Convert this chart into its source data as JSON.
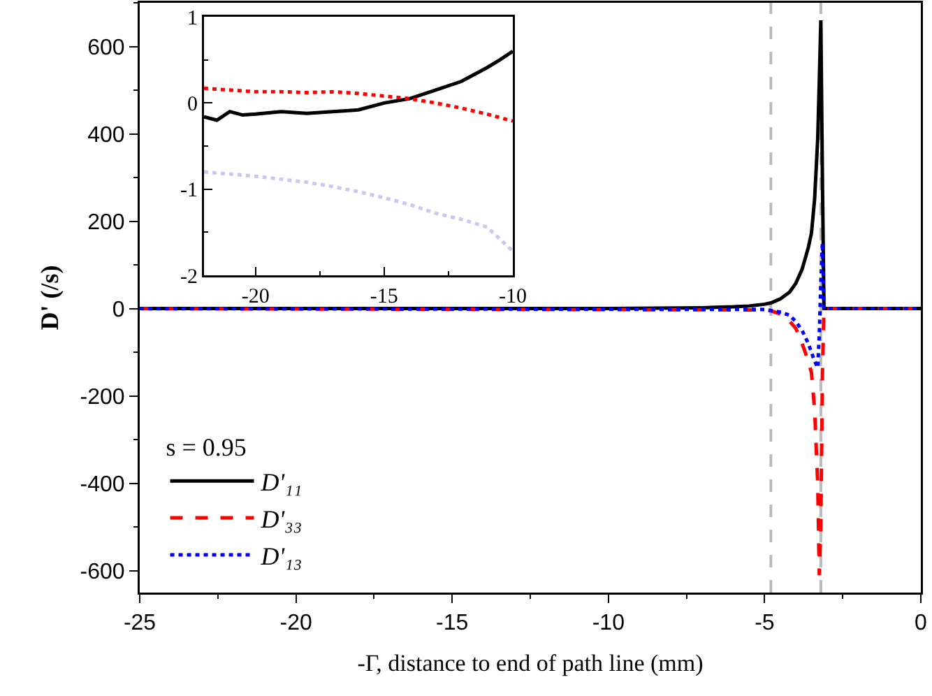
{
  "chart_data": [
    {
      "type": "line",
      "xlabel": "-Γ, distance to end of path line (mm)",
      "ylabel": "D' (/s)",
      "legend_title": "s = 0.95",
      "legend": "bottom left",
      "marker": "none",
      "grid": false,
      "xlim": [
        -25,
        0
      ],
      "xticks": [
        -25,
        -20,
        -15,
        -10,
        -5,
        0
      ],
      "ylim": [
        -650,
        700
      ],
      "yticks": [
        -600,
        -400,
        -200,
        0,
        200,
        400,
        600
      ],
      "ref_lines": [
        {
          "axis": "x",
          "value": -4.8,
          "color": "#bbbbbb",
          "line_style": "dashed"
        },
        {
          "axis": "x",
          "value": -3.2,
          "color": "#bbbbbb",
          "line_style": "dashed"
        }
      ],
      "series": [
        {
          "name": "D'₁₁",
          "color": "#000000",
          "line_style": "solid",
          "x": [
            -25,
            -10,
            -7,
            -6,
            -5.5,
            -5,
            -4.8,
            -4.5,
            -4.2,
            -4,
            -3.8,
            -3.6,
            -3.5,
            -3.4,
            -3.3,
            -3.25,
            -3.2,
            -3.15,
            -3.1,
            -3,
            0
          ],
          "values": [
            0,
            0,
            2,
            4,
            6,
            10,
            13,
            22,
            38,
            58,
            90,
            140,
            173,
            250,
            388,
            520,
            660,
            300,
            0,
            0,
            0
          ]
        },
        {
          "name": "D'₃₃",
          "color": "#ff0000",
          "line_style": "dashed",
          "x": [
            -25,
            -5,
            -4.8,
            -4.5,
            -4.2,
            -4,
            -3.8,
            -3.6,
            -3.5,
            -3.4,
            -3.3,
            -3.25,
            -3.2,
            -3.15,
            -3.1,
            -3,
            0
          ],
          "values": [
            0,
            -3,
            -5,
            -12,
            -29,
            -45,
            -80,
            -120,
            -147,
            -230,
            -400,
            -610,
            -500,
            -150,
            0,
            0,
            0
          ]
        },
        {
          "name": "D'₁₃",
          "color": "#0000ff",
          "line_style": "dotted",
          "x": [
            -25,
            -5,
            -4.5,
            -4.2,
            -4,
            -3.8,
            -3.6,
            -3.5,
            -3.4,
            -3.3,
            -3.25,
            -3.2,
            -3.15,
            -3.1,
            -3,
            0
          ],
          "values": [
            0,
            -2,
            -8,
            -15,
            -30,
            -50,
            -80,
            -100,
            -120,
            -135,
            -60,
            60,
            150,
            0,
            0,
            0
          ]
        }
      ]
    },
    {
      "type": "line",
      "legend": false,
      "marker": "none",
      "grid": false,
      "xlim": [
        -22,
        -10
      ],
      "xticks": [
        -20,
        -15,
        -10
      ],
      "ylim": [
        -2,
        1
      ],
      "yticks": [
        -2,
        -1,
        0,
        1
      ],
      "series": [
        {
          "color": "#000000",
          "line_style": "solid",
          "x": [
            -22,
            -21.5,
            -21,
            -20.5,
            -20,
            -19,
            -18,
            -17,
            -16,
            -15,
            -14,
            -13,
            -12,
            -11,
            -10.5,
            -10
          ],
          "values": [
            -0.16,
            -0.2,
            -0.1,
            -0.14,
            -0.13,
            -0.1,
            -0.12,
            -0.1,
            -0.08,
            0,
            0.05,
            0.15,
            0.25,
            0.41,
            0.5,
            0.6
          ]
        },
        {
          "color": "#ff0000",
          "line_style": "dotted",
          "x": [
            -22,
            -21,
            -20,
            -19,
            -18,
            -17,
            -16,
            -15,
            -14,
            -13,
            -12,
            -11,
            -10
          ],
          "values": [
            0.17,
            0.15,
            0.13,
            0.13,
            0.12,
            0.13,
            0.11,
            0.08,
            0.05,
            0,
            -0.06,
            -0.13,
            -0.21
          ]
        },
        {
          "color": "#c8c8f0",
          "line_style": "dotted",
          "x": [
            -22,
            -20,
            -18,
            -17,
            -16,
            -15,
            -14,
            -13,
            -12,
            -11,
            -10
          ],
          "values": [
            -0.8,
            -0.85,
            -0.92,
            -0.97,
            -1.03,
            -1.1,
            -1.18,
            -1.28,
            -1.35,
            -1.44,
            -1.72
          ]
        }
      ]
    }
  ]
}
